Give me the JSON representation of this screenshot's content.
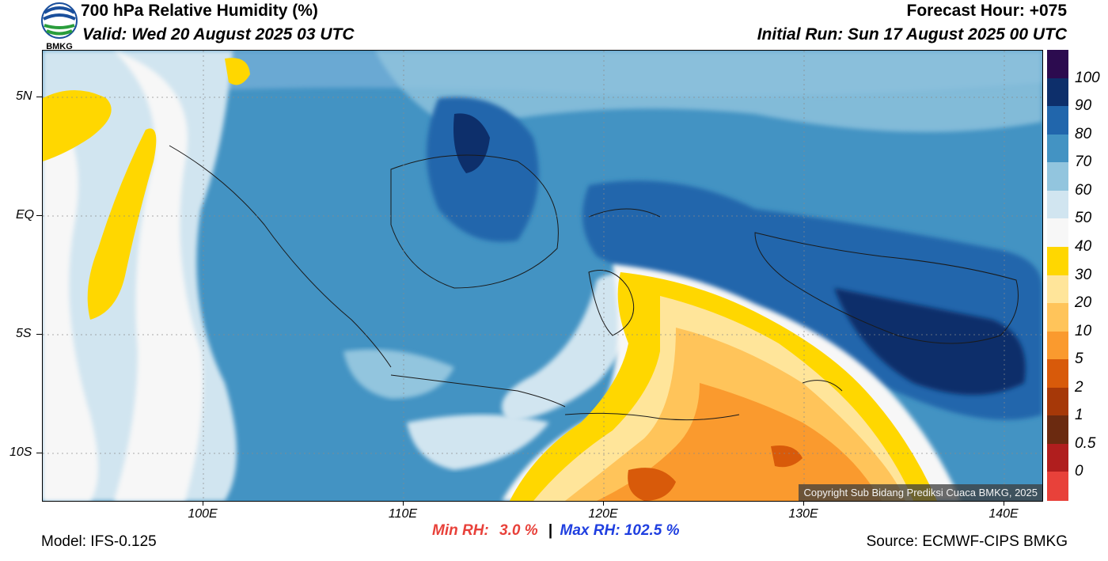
{
  "header": {
    "title": "700 hPa Relative Humidity (%)",
    "valid": "Valid: Wed 20 August 2025 03 UTC",
    "forecast_hour": "Forecast Hour: +075",
    "initial_run": "Initial Run: Sun 17 August 2025 00 UTC"
  },
  "logo": {
    "text": "BMKG",
    "icon": "bmkg-logo"
  },
  "map": {
    "lat_labels": [
      "5N",
      "EQ",
      "5S",
      "10S"
    ],
    "lon_labels": [
      "100E",
      "110E",
      "120E",
      "130E",
      "140E"
    ],
    "copyright": "Copyright Sub Bidang Prediksi Cuaca BMKG, 2025"
  },
  "colorbar": {
    "labels": [
      "100",
      "90",
      "80",
      "70",
      "60",
      "50",
      "40",
      "30",
      "20",
      "10",
      "5",
      "2",
      "1",
      "0.5",
      "0"
    ],
    "colors": [
      "#2c0b4f",
      "#0d2f6b",
      "#2166ac",
      "#4393c3",
      "#92c5de",
      "#d1e5f0",
      "#f7f7f7",
      "#ffd700",
      "#ffe59a",
      "#ffc45a",
      "#fa9a2e",
      "#d85a0a",
      "#a63808",
      "#6b2a10",
      "#b01e1e",
      "#e8413a"
    ]
  },
  "footer": {
    "model": "Model: IFS-0.125",
    "min_label": "Min RH:",
    "min_value": "3.0 %",
    "separator": "|",
    "max_label": "Max RH: 102.5 %",
    "source": "Source: ECMWF-CIPS BMKG"
  }
}
